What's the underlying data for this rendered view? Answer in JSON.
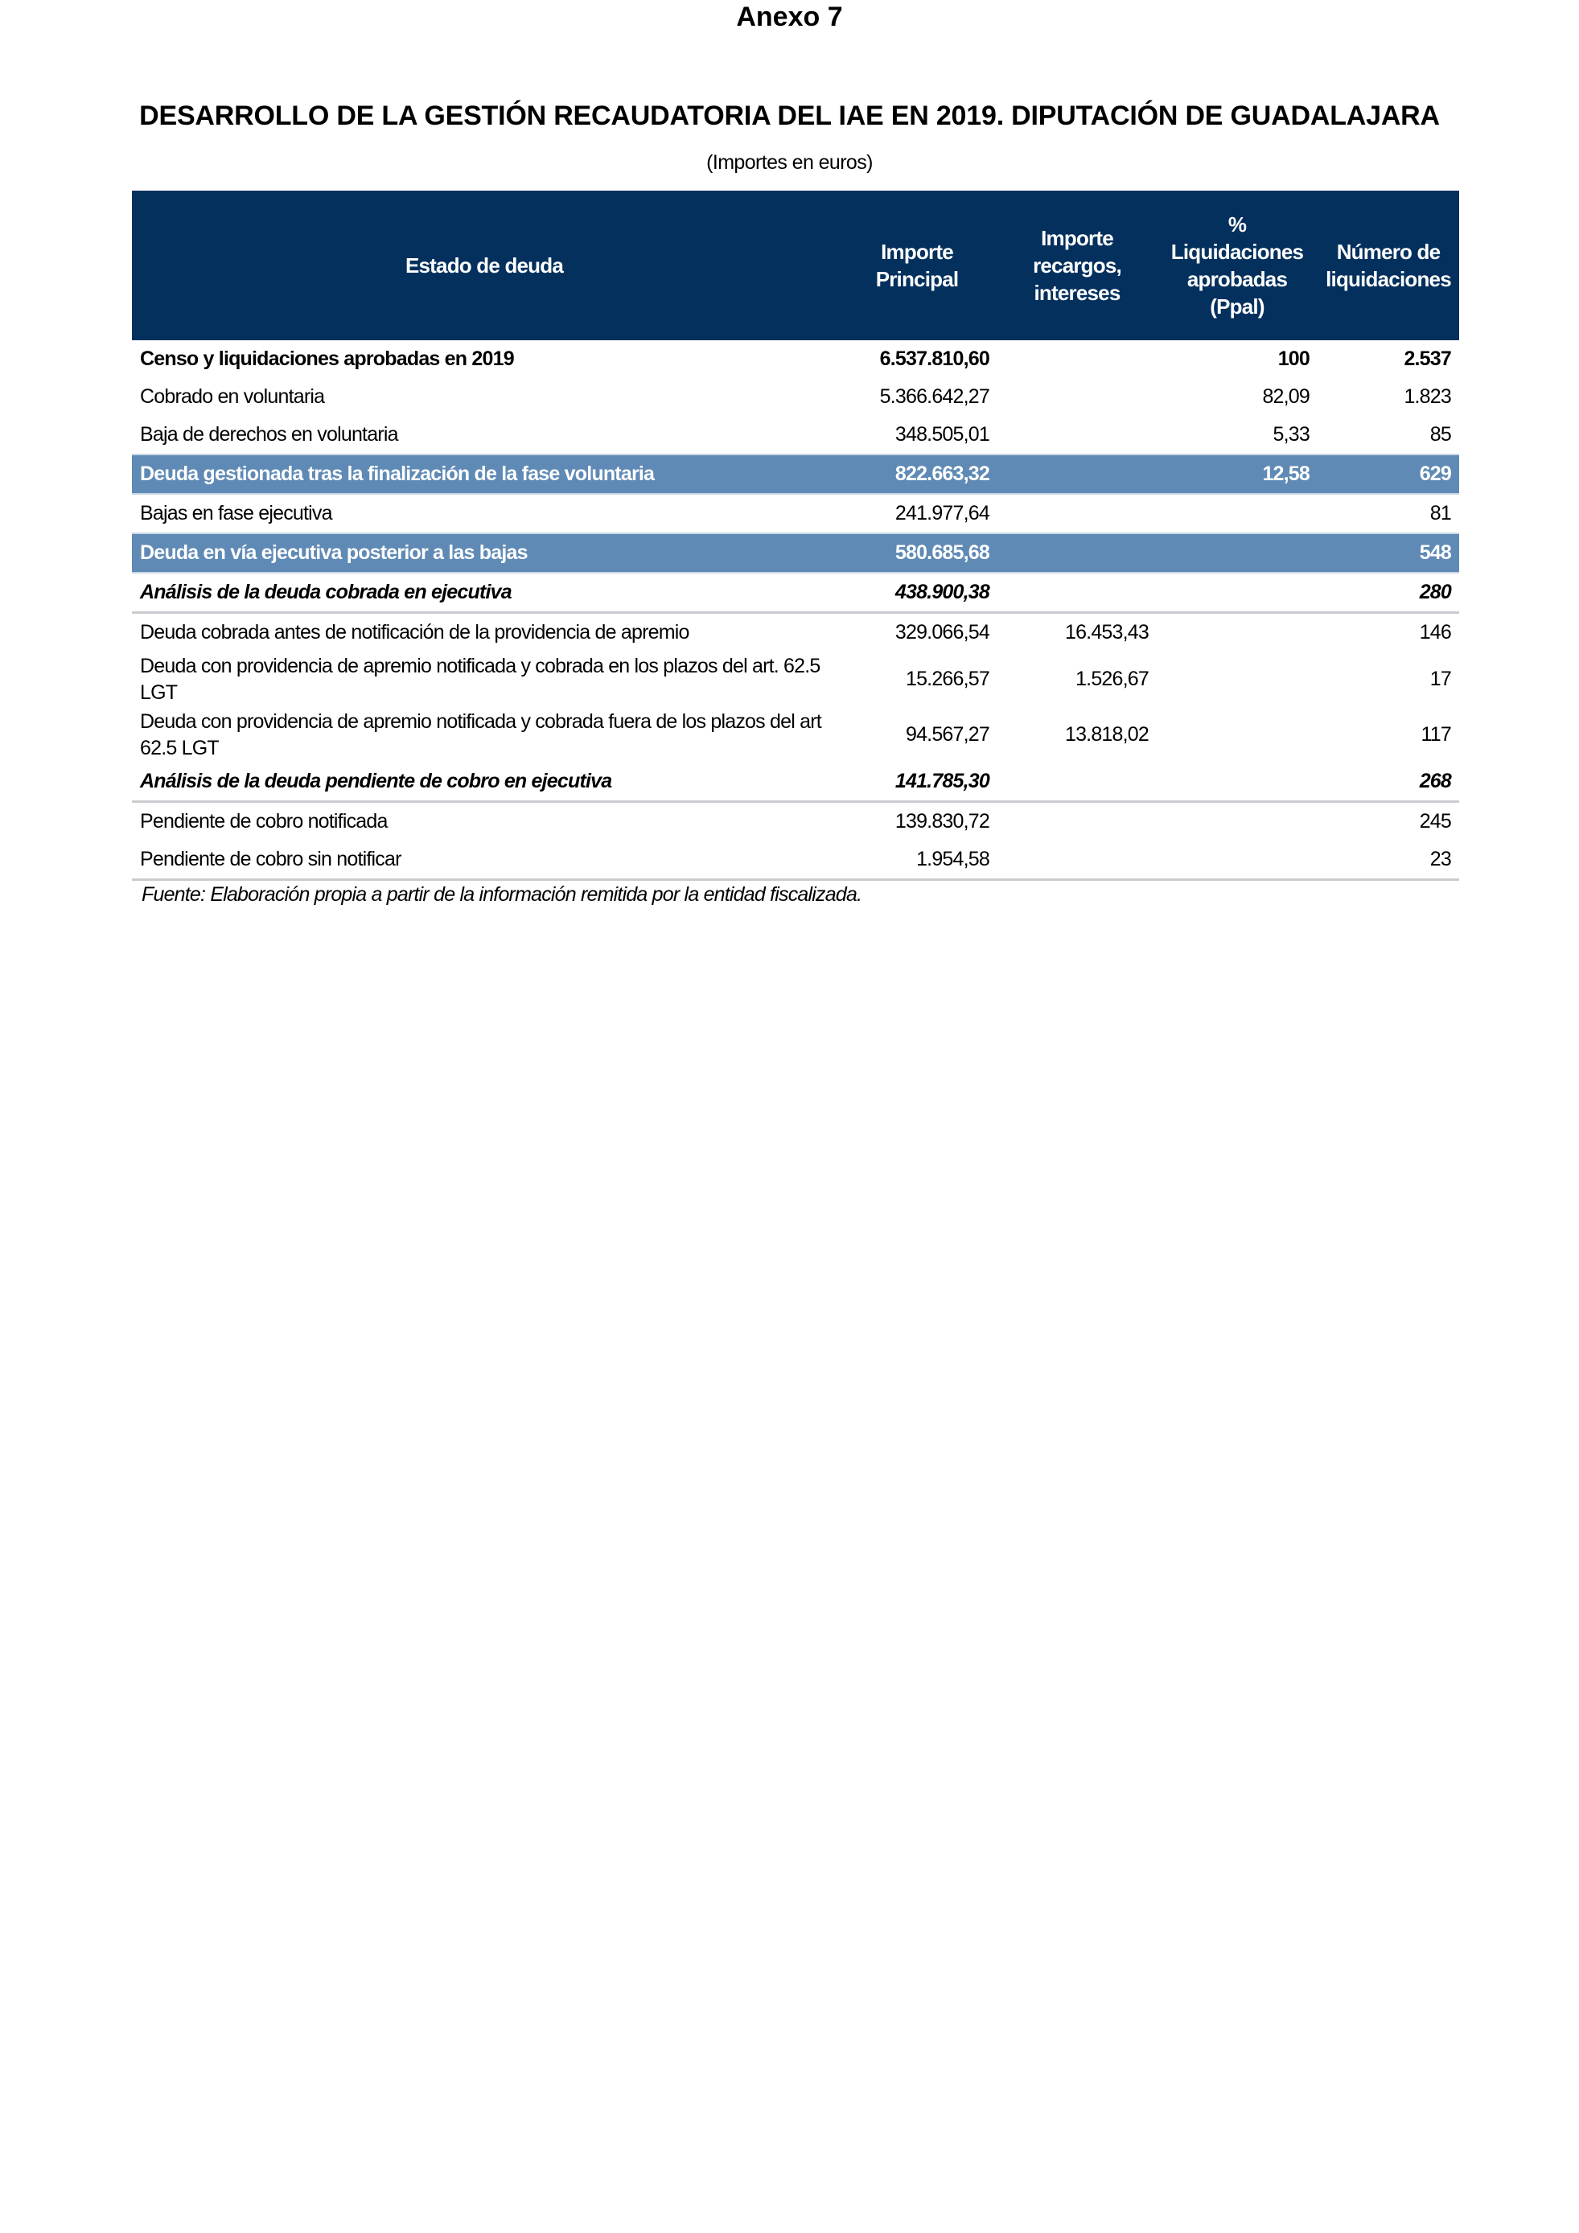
{
  "annex": "Anexo 7",
  "title": "DESARROLLO DE LA GESTIÓN RECAUDATORIA DEL IAE EN 2019. DIPUTACIÓN DE GUADALAJARA",
  "subtitle": "(Importes en euros)",
  "colors": {
    "header_bg": "#03305d",
    "highlight_bg": "#5f8ab5"
  },
  "table": {
    "headers": [
      "Estado de deuda",
      "Importe Principal",
      "Importe recargos, intereses",
      "% Liquidaciones aprobadas (Ppal)",
      "Número de liquidaciones"
    ],
    "rows": [
      {
        "style": "bold",
        "cells": [
          "Censo y liquidaciones aprobadas en 2019",
          "6.537.810,60",
          "",
          "100",
          "2.537"
        ]
      },
      {
        "style": "normal",
        "cells": [
          "Cobrado en voluntaria",
          "5.366.642,27",
          "",
          "82,09",
          "1.823"
        ]
      },
      {
        "style": "normal",
        "cells": [
          "Baja de derechos en voluntaria",
          "348.505,01",
          "",
          "5,33",
          "85"
        ]
      },
      {
        "style": "highlight",
        "cells": [
          "Deuda gestionada tras la finalización de la fase voluntaria",
          "822.663,32",
          "",
          "12,58",
          "629"
        ]
      },
      {
        "style": "normal",
        "cells": [
          "Bajas en fase ejecutiva",
          "241.977,64",
          "",
          "",
          "81"
        ]
      },
      {
        "style": "highlight",
        "cells": [
          "Deuda en vía ejecutiva posterior a las bajas",
          "580.685,68",
          "",
          "",
          "548"
        ]
      },
      {
        "style": "italic",
        "cells": [
          "Análisis de la deuda cobrada en ejecutiva",
          "438.900,38",
          "",
          "",
          "280"
        ]
      },
      {
        "style": "normal",
        "cells": [
          "Deuda cobrada antes de notificación de la providencia de apremio",
          "329.066,54",
          "16.453,43",
          "",
          "146"
        ]
      },
      {
        "style": "tall",
        "cells": [
          "Deuda con providencia de apremio notificada y cobrada en los plazos del art. 62.5 LGT",
          "15.266,57",
          "1.526,67",
          "",
          "17"
        ]
      },
      {
        "style": "tall",
        "cells": [
          "Deuda con providencia de apremio notificada y cobrada fuera de los plazos del art 62.5 LGT",
          "94.567,27",
          "13.818,02",
          "",
          "117"
        ]
      },
      {
        "style": "italic",
        "cells": [
          "Análisis de la deuda pendiente de cobro en ejecutiva",
          "141.785,30",
          "",
          "",
          "268"
        ]
      },
      {
        "style": "normal",
        "cells": [
          "Pendiente de cobro notificada",
          "139.830,72",
          "",
          "",
          "245"
        ]
      },
      {
        "style": "last",
        "cells": [
          "Pendiente de cobro sin notificar",
          "1.954,58",
          "",
          "",
          "23"
        ]
      }
    ]
  },
  "source": "Fuente: Elaboración propia a partir de la información remitida por la entidad fiscalizada."
}
